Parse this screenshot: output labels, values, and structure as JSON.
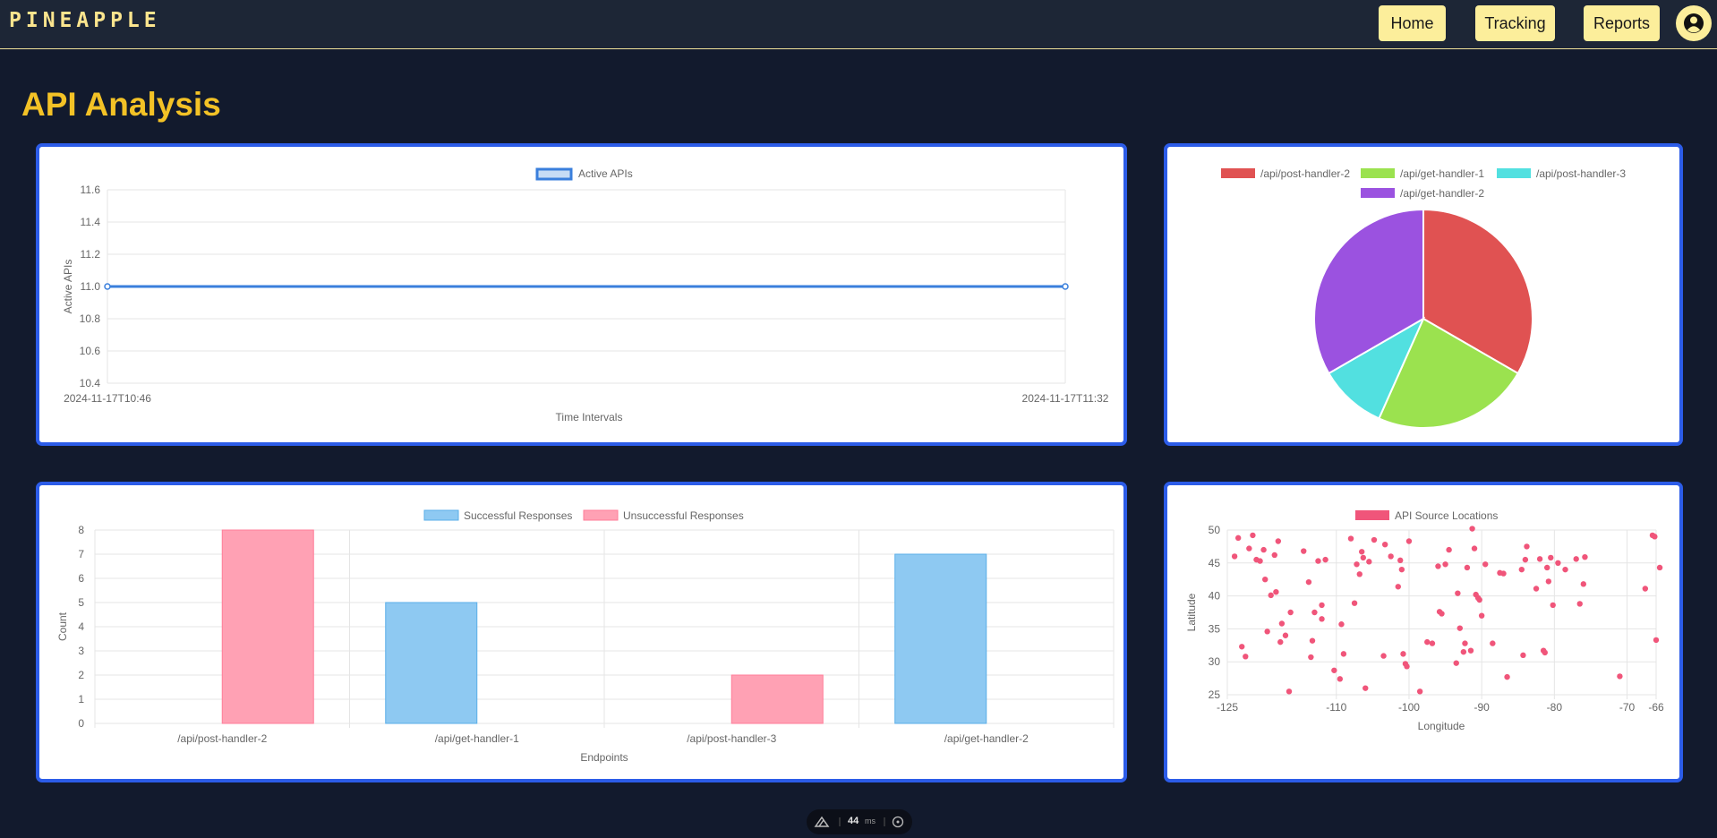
{
  "app": {
    "brand": "PINEAPPLE",
    "nav": {
      "home": "Home",
      "tracking": "Tracking",
      "reports": "Reports"
    },
    "page_title": "API Analysis"
  },
  "colors": {
    "accent_yellow": "#fcee9b",
    "title_gold": "#f3c226",
    "card_border": "#2c5ce8",
    "background": "#121a2d"
  },
  "chart_data": [
    {
      "type": "line",
      "x": [
        "2024-11-17T10:46",
        "2024-11-17T11:32"
      ],
      "series": [
        {
          "name": "Active APIs",
          "values": [
            11.0,
            11.0
          ],
          "color": "#3a7fdc"
        }
      ],
      "xlabel": "Time Intervals",
      "ylabel": "Active APIs",
      "ylim": [
        10.4,
        11.6
      ],
      "yticks": [
        "11.6",
        "11.4",
        "11.2",
        "11.0",
        "10.8",
        "10.6",
        "10.4"
      ],
      "legend": "top",
      "grid": true
    },
    {
      "type": "pie",
      "labels": [
        "/api/post-handler-2",
        "/api/get-handler-1",
        "/api/post-handler-3",
        "/api/get-handler-2"
      ],
      "values": [
        5,
        3.5,
        1.5,
        5
      ],
      "colors": [
        "#e05252",
        "#9be24f",
        "#52e0e0",
        "#9b52e0"
      ],
      "legend": "top"
    },
    {
      "type": "bar",
      "categories": [
        "/api/post-handler-2",
        "/api/get-handler-1",
        "/api/post-handler-3",
        "/api/get-handler-2"
      ],
      "series": [
        {
          "name": "Successful Responses",
          "values": [
            0,
            5,
            0,
            7
          ],
          "color": "#8ec9f2"
        },
        {
          "name": "Unsuccessful Responses",
          "values": [
            8,
            0,
            2,
            0
          ],
          "color": "#ffa1b4"
        }
      ],
      "xlabel": "Endpoints",
      "ylabel": "Count",
      "ylim": [
        0,
        8
      ],
      "yticks": [
        "8",
        "7",
        "6",
        "5",
        "4",
        "3",
        "2",
        "1",
        "0"
      ],
      "legend": "top",
      "grid": true
    },
    {
      "type": "scatter",
      "series": [
        {
          "name": "API Source Locations",
          "color": "#f0557a",
          "points": [
            [
              -124,
              46
            ],
            [
              -123.5,
              48.8
            ],
            [
              -123,
              32.3
            ],
            [
              -122.5,
              30.8
            ],
            [
              -122,
              47.2
            ],
            [
              -121.5,
              49.2
            ],
            [
              -121,
              45.5
            ],
            [
              -120.5,
              45.3
            ],
            [
              -120,
              47
            ],
            [
              -119.8,
              42.5
            ],
            [
              -119.5,
              34.6
            ],
            [
              -119,
              40.1
            ],
            [
              -118.5,
              46.2
            ],
            [
              -118.3,
              40.6
            ],
            [
              -118,
              48.3
            ],
            [
              -117.7,
              33
            ],
            [
              -117.5,
              35.8
            ],
            [
              -117,
              34
            ],
            [
              -116.5,
              25.5
            ],
            [
              -116.3,
              37.5
            ],
            [
              -114.5,
              46.8
            ],
            [
              -113.8,
              42.1
            ],
            [
              -113.5,
              30.7
            ],
            [
              -113.3,
              33.2
            ],
            [
              -113,
              37.5
            ],
            [
              -112.5,
              45.3
            ],
            [
              -112,
              38.6
            ],
            [
              -112,
              36.5
            ],
            [
              -111.5,
              45.5
            ],
            [
              -110.3,
              28.7
            ],
            [
              -109.5,
              27.4
            ],
            [
              -109.3,
              35.7
            ],
            [
              -109,
              31.2
            ],
            [
              -108,
              48.7
            ],
            [
              -107.5,
              38.9
            ],
            [
              -107.2,
              44.8
            ],
            [
              -106.8,
              43.3
            ],
            [
              -106.5,
              46.7
            ],
            [
              -106.3,
              45.8
            ],
            [
              -106,
              26
            ],
            [
              -105.5,
              45.2
            ],
            [
              -104.8,
              48.5
            ],
            [
              -103.5,
              30.9
            ],
            [
              -103.3,
              47.8
            ],
            [
              -102.5,
              46
            ],
            [
              -101.5,
              41.4
            ],
            [
              -101.2,
              45.4
            ],
            [
              -101,
              44
            ],
            [
              -100.8,
              31.2
            ],
            [
              -100.5,
              29.7
            ],
            [
              -100.3,
              29.3
            ],
            [
              -100,
              48.3
            ],
            [
              -98.5,
              25.5
            ],
            [
              -97.5,
              33
            ],
            [
              -96.8,
              32.8
            ],
            [
              -96,
              44.5
            ],
            [
              -95.8,
              37.6
            ],
            [
              -95.5,
              37.3
            ],
            [
              -95,
              44.8
            ],
            [
              -94.5,
              47
            ],
            [
              -93.5,
              29.8
            ],
            [
              -93.3,
              40.4
            ],
            [
              -93,
              35.1
            ],
            [
              -92.5,
              31.5
            ],
            [
              -92.3,
              32.8
            ],
            [
              -92,
              44.3
            ],
            [
              -91.5,
              31.7
            ],
            [
              -91.3,
              50.2
            ],
            [
              -91,
              47.2
            ],
            [
              -90.8,
              40.2
            ],
            [
              -90.5,
              39.7
            ],
            [
              -90.3,
              39.4
            ],
            [
              -90,
              37
            ],
            [
              -89.5,
              44.8
            ],
            [
              -88.5,
              32.8
            ],
            [
              -87.5,
              43.5
            ],
            [
              -87,
              43.4
            ],
            [
              -86.5,
              27.7
            ],
            [
              -84.5,
              44
            ],
            [
              -84.3,
              31
            ],
            [
              -84,
              45.5
            ],
            [
              -83.8,
              47.5
            ],
            [
              -82.5,
              41.1
            ],
            [
              -82,
              45.6
            ],
            [
              -81.5,
              31.7
            ],
            [
              -81.3,
              31.4
            ],
            [
              -81,
              44.3
            ],
            [
              -80.8,
              42.2
            ],
            [
              -80.5,
              45.8
            ],
            [
              -80.2,
              38.6
            ],
            [
              -79.5,
              45
            ],
            [
              -78.5,
              44
            ],
            [
              -77,
              45.6
            ],
            [
              -76.5,
              38.8
            ],
            [
              -76,
              41.8
            ],
            [
              -75.8,
              45.9
            ],
            [
              -71,
              27.8
            ],
            [
              -67.5,
              41.1
            ],
            [
              -66.5,
              49.2
            ],
            [
              -66,
              33.3
            ],
            [
              -65.5,
              44.3
            ],
            [
              -66.2,
              49
            ]
          ]
        }
      ],
      "xlabel": "Longitude",
      "ylabel": "Latitude",
      "xlim": [
        -125,
        -66
      ],
      "ylim": [
        25,
        50
      ],
      "xticks": [
        "-125",
        "-110",
        "-100",
        "-90",
        "-80",
        "-70",
        "-66"
      ],
      "yticks": [
        "50",
        "45",
        "40",
        "35",
        "30",
        "25"
      ],
      "legend": "top",
      "grid": true
    }
  ],
  "status": {
    "render_ms": "44",
    "unit": "ms"
  }
}
